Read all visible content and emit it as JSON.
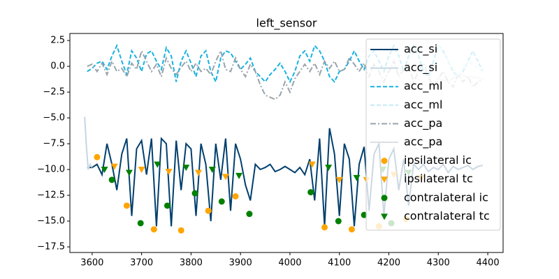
{
  "chart_data": {
    "type": "line",
    "title": "left_sensor",
    "xlim": [
      3555,
      4431
    ],
    "ylim": [
      -18.04,
      3.18
    ],
    "xticks": [
      3600,
      3700,
      3800,
      3900,
      4000,
      4100,
      4200,
      4300,
      4400
    ],
    "yticks": [
      {
        "value": 2.5,
        "label": "2.5"
      },
      {
        "value": 0,
        "label": "0.0"
      },
      {
        "value": -2.5,
        "label": "−2.5"
      },
      {
        "value": -5,
        "label": "−5.0"
      },
      {
        "value": -7.5,
        "label": "−7.5"
      },
      {
        "value": -10,
        "label": "−10.0"
      },
      {
        "value": -12.5,
        "label": "−12.5"
      },
      {
        "value": -15,
        "label": "−15.0"
      },
      {
        "value": -17.5,
        "label": "−17.5"
      }
    ],
    "legend": "upper right",
    "x": [
      3590,
      3600,
      3610,
      3620,
      3630,
      3640,
      3650,
      3660,
      3670,
      3680,
      3690,
      3700,
      3710,
      3720,
      3730,
      3740,
      3750,
      3760,
      3770,
      3780,
      3790,
      3800,
      3810,
      3820,
      3830,
      3840,
      3850,
      3860,
      3870,
      3880,
      3890,
      3900,
      3910,
      3920,
      3930,
      3940,
      3950,
      3960,
      3970,
      3980,
      3990,
      4000,
      4010,
      4020,
      4030,
      4040,
      4050,
      4060,
      4070,
      4080,
      4090,
      4100,
      4110,
      4120,
      4130,
      4140,
      4150,
      4160,
      4170,
      4180,
      4190,
      4200,
      4210,
      4220,
      4230,
      4240,
      4250,
      4260,
      4270,
      4280,
      4290,
      4300,
      4310,
      4320,
      4330,
      4340,
      4350,
      4360,
      4370,
      4380,
      4390
    ],
    "series": [
      {
        "name": "acc_si",
        "color": "#003f6e",
        "dash": "solid",
        "values": [
          -9.8,
          -9.8,
          -9.5,
          -10.5,
          -7.5,
          -9.5,
          -12,
          -8.5,
          -7,
          -14.5,
          -8,
          -7.2,
          -10.5,
          -7,
          -15.5,
          -7,
          -7.5,
          -15.5,
          -7.2,
          -12,
          -7.5,
          -8,
          -14.5,
          -7.5,
          -9.5,
          -15,
          -7.5,
          -11,
          -7,
          -14,
          -7.5,
          -9,
          -11.5,
          -13,
          -9.5,
          -10,
          -9.8,
          -9.5,
          -10.2,
          -10,
          -9.7,
          -10,
          -10.3,
          -9.8,
          -10.5,
          -9,
          -13,
          -7,
          -15.5,
          -6,
          -8.5,
          -14.5,
          -7.5,
          -9,
          -15.5,
          -9.5,
          -7.8,
          -14,
          -8.5,
          -7.5,
          -14.5,
          -9,
          -8,
          -12,
          -9,
          -13.5,
          -9.5,
          -10,
          -9.5,
          -10.2,
          -9.8,
          -10,
          -9.5,
          -10.3,
          -9.7,
          -10,
          -9.8,
          -9.6,
          -10,
          -9.7,
          -9.6
        ]
      },
      {
        "name": "acc_si",
        "color": "#c6d6e2",
        "dash": "solid",
        "x": [
          3585,
          3588,
          3592,
          3596,
          3600
        ],
        "values": [
          -4.9,
          -7.5,
          -10.0,
          -9.5,
          -9.8
        ]
      },
      {
        "name": "acc_ml",
        "color": "#17b2e0",
        "dash": "dashed",
        "values": [
          -0.5,
          -0.2,
          0.3,
          0.5,
          -0.3,
          1.0,
          2.0,
          0.5,
          -0.8,
          1.5,
          0.8,
          -0.5,
          1.2,
          1.5,
          0.5,
          -0.3,
          1.8,
          1.0,
          -1.5,
          0.5,
          1.5,
          0.3,
          -1.0,
          1.0,
          1.5,
          -0.5,
          -1.5,
          0.8,
          1.5,
          1.3,
          0.5,
          -0.3,
          0.2,
          0.8,
          -0.5,
          -1.0,
          -1.5,
          -0.8,
          -0.3,
          0.3,
          -0.5,
          -1.5,
          -0.5,
          1.0,
          1.5,
          0.5,
          2.0,
          1.5,
          0.5,
          -1.0,
          -1.5,
          -0.5,
          -0.3,
          0.5,
          1.5,
          0.5,
          -0.3,
          1.0,
          1.5,
          0.5,
          -0.5,
          1.0,
          2.0,
          1.0,
          -0.5,
          1.0,
          2.0,
          1.0,
          -0.5,
          -1.0,
          0.5,
          2.0,
          1.5,
          0.5,
          -0.5,
          -1.0,
          -0.5,
          0.5,
          1.5,
          0.5,
          -0.5
        ]
      },
      {
        "name": "acc_ml",
        "color": "#c4eaf6",
        "dash": "dashed",
        "x": [
          4300,
          4320,
          4340,
          4360,
          4390
        ],
        "values": [
          2.0,
          0.5,
          -1.0,
          0.5,
          -0.5
        ]
      },
      {
        "name": "acc_pa",
        "color": "#99a3ab",
        "dash": "dashdot",
        "values": [
          0,
          0.2,
          -0.5,
          0.3,
          -0.8,
          0.5,
          -0.5,
          -0.2,
          -1.0,
          0.3,
          -0.3,
          1.5,
          0.5,
          -0.5,
          0.2,
          -1.0,
          0.8,
          -0.2,
          -0.8,
          -0.1,
          0.5,
          -0.5,
          0.3,
          -0.5,
          -0.2,
          -0.8,
          0.5,
          1.5,
          -0.3,
          -0.5,
          0.8,
          -0.3,
          -1.0,
          0.2,
          -0.5,
          -1.8,
          -2.8,
          -3.0,
          -3.2,
          -2.8,
          -1.5,
          -2.5,
          -1.2,
          -0.5,
          0.2,
          -0.5,
          0.3,
          -0.8,
          0.5,
          -0.2,
          0.5,
          -0.5,
          -0.3,
          0.8,
          0.2,
          -0.5,
          0.3,
          -1.0,
          0.2,
          -0.5,
          -1.5,
          -0.5,
          0.5,
          -1.0,
          -0.3,
          0.2,
          -1.5,
          -0.5,
          0.3,
          -1.0,
          -2.0,
          -1.2,
          -0.5,
          -1.5,
          -2.0,
          -0.8,
          -1.5,
          -1.0,
          -2.0,
          -1.5,
          -1.2
        ]
      },
      {
        "name": "acc_pa",
        "color": "#dadfe2",
        "dash": "solid",
        "x": [
          4300,
          4320,
          4340,
          4360,
          4390
        ],
        "values": [
          -1.2,
          -1.5,
          -0.8,
          -1.0,
          -1.2
        ]
      }
    ],
    "markers": [
      {
        "name": "ipsilateral ic",
        "color": "#ffa500",
        "marker": "circle",
        "x": [
          3610,
          3670,
          3725,
          3780,
          3835,
          3890,
          4070,
          4125,
          4180,
          4235
        ],
        "values": [
          -8.8,
          -13.5,
          -15.8,
          -15.9,
          -14.0,
          -12.6,
          -15.6,
          -15.8,
          -15.5,
          -14.8
        ]
      },
      {
        "name": "ipsilateral tc",
        "color": "#ffa500",
        "marker": "triangle_down",
        "x": [
          3645,
          3700,
          3755,
          3815,
          3870,
          4045,
          4100,
          4155,
          4210,
          4265
        ],
        "values": [
          -9.7,
          -10.0,
          -10.2,
          -10.3,
          -10.7,
          -9.5,
          -11.0,
          -11.0,
          -10.5,
          -10.8
        ]
      },
      {
        "name": "contralateral ic",
        "color": "#008000",
        "marker": "circle",
        "x": [
          3640,
          3698,
          3752,
          3808,
          3862,
          3918,
          4042,
          4098,
          4150,
          4205
        ],
        "values": [
          -11.0,
          -15.2,
          -13.5,
          -12.3,
          -13.1,
          -14.3,
          -12.2,
          -15.0,
          -14.4,
          -15.2
        ]
      },
      {
        "name": "contralateral tc",
        "color": "#008000",
        "marker": "triangle_down",
        "x": [
          3625,
          3675,
          3732,
          3790,
          3843,
          3897,
          4078,
          4135,
          4188,
          4240
        ],
        "values": [
          -10.0,
          -10.3,
          -9.5,
          -9.8,
          -10.0,
          -10.6,
          -9.8,
          -10.8,
          -10.0,
          -10.3
        ]
      }
    ]
  }
}
